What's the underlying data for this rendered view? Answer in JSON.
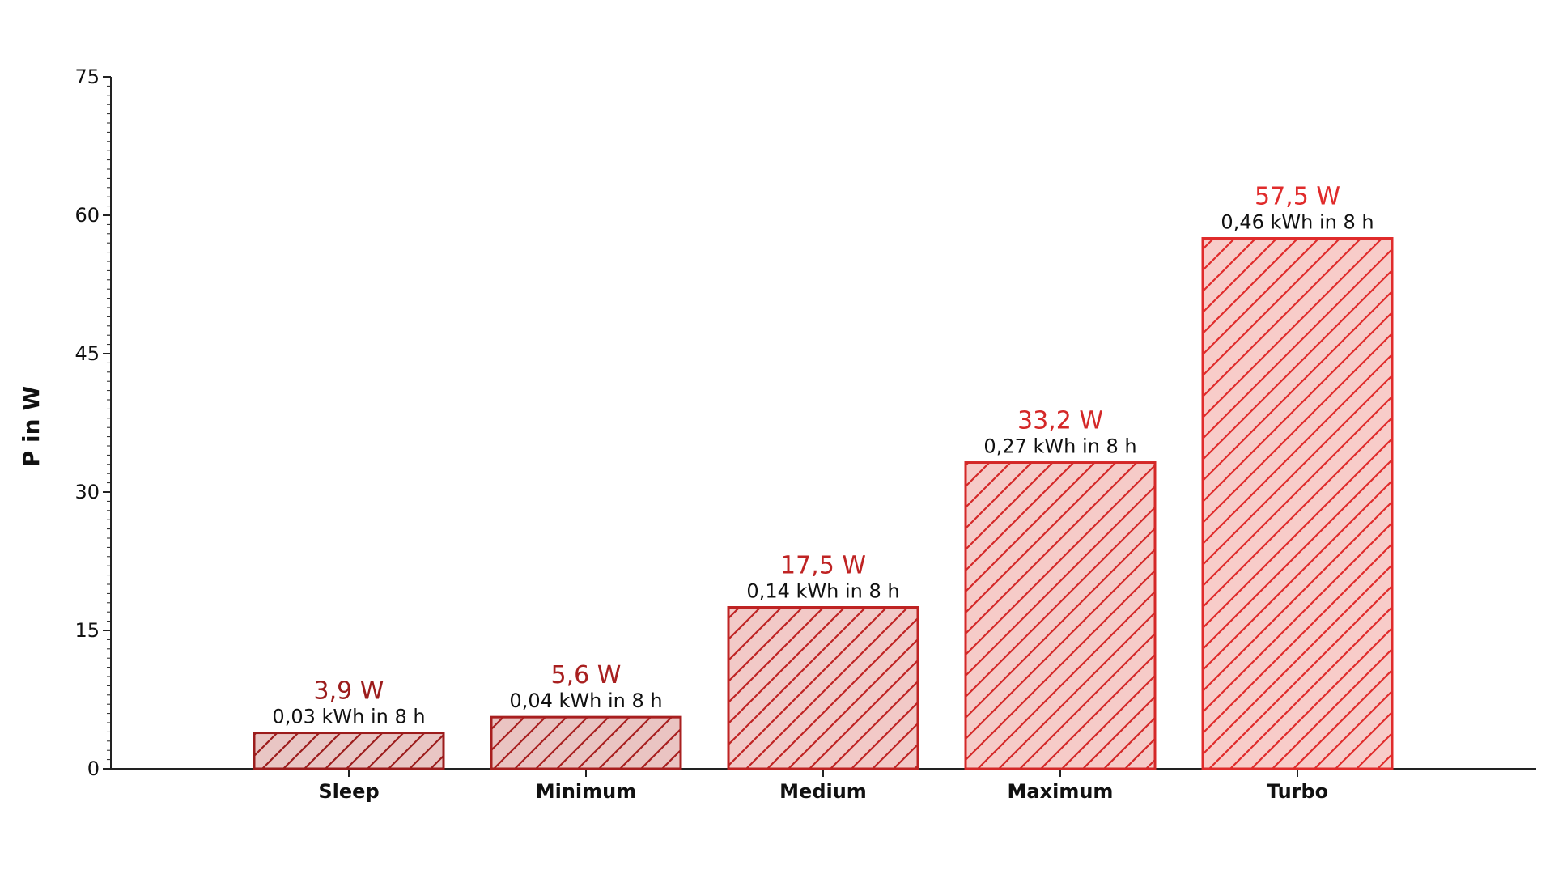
{
  "chart_data": {
    "type": "bar",
    "ylabel": "P in W",
    "xlabel": "",
    "ylim": [
      0,
      75
    ],
    "yticks": [
      0,
      15,
      30,
      45,
      60,
      75
    ],
    "categories": [
      "Sleep",
      "Minimum",
      "Medium",
      "Maximum",
      "Turbo"
    ],
    "values": [
      3.9,
      5.6,
      17.5,
      33.2,
      57.5
    ],
    "value_labels": [
      "3,9 W",
      "5,6 W",
      "17,5 W",
      "33,2 W",
      "57,5 W"
    ],
    "energy_labels": [
      "0,03 kWh in 8 h",
      "0,04 kWh in 8 h",
      "0,14 kWh in 8 h",
      "0,27 kWh in 8 h",
      "0,46 kWh in 8 h"
    ],
    "bar_colors": [
      "#9c1c1c",
      "#a81f1f",
      "#bf2323",
      "#d42828",
      "#e02b2b"
    ],
    "bar_fills": [
      "#e9c6c4",
      "#eac4c2",
      "#f2c9c7",
      "#f6cbc8",
      "#f8ccc9"
    ],
    "hatch": "diagonal",
    "grid": false,
    "legend": "none"
  }
}
